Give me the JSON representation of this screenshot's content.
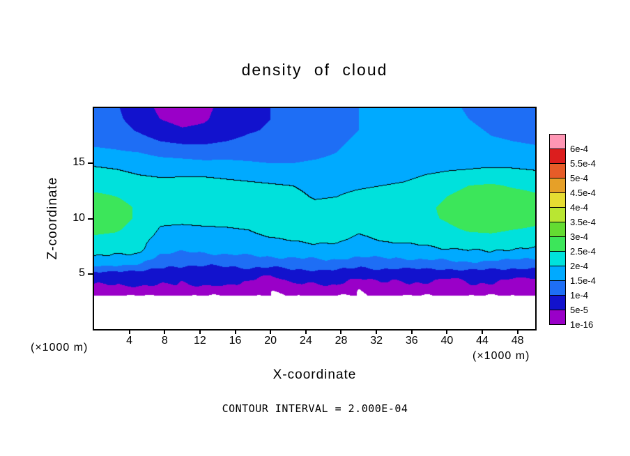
{
  "title": "density of cloud",
  "footnote": "CONTOUR INTERVAL = 2.000E-04",
  "axes": {
    "x_label": "X-coordinate",
    "z_label": "Z-coordinate",
    "x_unit_left": "(×1000 m)",
    "x_unit_right": "(×1000 m)",
    "x_ticks": [
      4,
      8,
      12,
      16,
      20,
      24,
      28,
      32,
      36,
      40,
      44,
      48
    ],
    "z_ticks": [
      5,
      10,
      15
    ]
  },
  "colorbar": {
    "labels_top_to_bottom": [
      "6e-4",
      "5.5e-4",
      "5e-4",
      "4.5e-4",
      "4e-4",
      "3.5e-4",
      "3e-4",
      "2.5e-4",
      "2e-4",
      "1.5e-4",
      "1e-4",
      "5e-5",
      "1e-16"
    ],
    "colors_top_to_bottom": [
      "#ff96b4",
      "#dc1e1e",
      "#e65c28",
      "#e6a028",
      "#e6dc32",
      "#b9e632",
      "#64dc32",
      "#3ce65a",
      "#00e1dc",
      "#00aaff",
      "#1e6ef5",
      "#1212cd",
      "#9a00c8"
    ]
  },
  "chart_data": {
    "type": "heatmap",
    "title": "density of cloud",
    "xlabel": "X-coordinate (×1000 m)",
    "ylabel": "Z-coordinate (×1000 m)",
    "x_range": [
      0,
      50
    ],
    "z_range": [
      0,
      20
    ],
    "value_scale": 0.0001,
    "value_note": "grid values are cloud density in multiples of 1e-4; 0 means below 1e-16 (blank/white)",
    "x": [
      0,
      2.5,
      5,
      7.5,
      10,
      12.5,
      15,
      17.5,
      20,
      22.5,
      25,
      27.5,
      30,
      32.5,
      35,
      37.5,
      40,
      42.5,
      45,
      47.5,
      50
    ],
    "z": [
      0,
      1,
      2,
      3,
      4,
      5,
      6,
      7,
      8,
      9,
      10,
      11,
      12,
      13,
      14,
      15,
      16,
      17,
      18,
      19,
      20
    ],
    "columns": [
      [
        0,
        0,
        0,
        0,
        0.5,
        0.8,
        1.8,
        2.15,
        2.4,
        2.6,
        2.7,
        2.7,
        2.6,
        2.35,
        2.15,
        1.95,
        1.6,
        1.4,
        1.25,
        1.15,
        1.1
      ],
      [
        0,
        0,
        0,
        0,
        0.5,
        0.8,
        1.7,
        2.1,
        2.35,
        2.55,
        2.65,
        2.65,
        2.5,
        2.3,
        2.1,
        1.9,
        1.55,
        1.35,
        1.2,
        1.1,
        1.05
      ],
      [
        0,
        0,
        0,
        0,
        0.55,
        0.85,
        1.6,
        2.05,
        2.2,
        2.35,
        2.45,
        2.45,
        2.35,
        2.2,
        2.0,
        1.8,
        1.5,
        1.2,
        0.95,
        0.8,
        0.75
      ],
      [
        0,
        0,
        0,
        0,
        0.5,
        0.75,
        1.2,
        1.6,
        1.8,
        1.95,
        2.1,
        2.2,
        2.25,
        2.15,
        1.95,
        1.7,
        1.35,
        1.0,
        0.7,
        0.5,
        0.4
      ],
      [
        0,
        0,
        0,
        0,
        0.5,
        0.7,
        1.1,
        1.5,
        1.8,
        1.9,
        2.1,
        2.25,
        2.3,
        2.2,
        1.95,
        1.65,
        1.3,
        0.9,
        0.55,
        0.35,
        0.3
      ],
      [
        0,
        0,
        0,
        0,
        0.5,
        0.7,
        1.1,
        1.55,
        1.85,
        1.92,
        2.15,
        2.3,
        2.3,
        2.2,
        1.95,
        1.6,
        1.25,
        0.9,
        0.6,
        0.45,
        0.4
      ],
      [
        0,
        0,
        0,
        0,
        0.55,
        0.75,
        1.15,
        1.6,
        1.85,
        1.95,
        2.15,
        2.3,
        2.3,
        2.15,
        1.9,
        1.6,
        1.3,
        1.0,
        0.8,
        0.7,
        0.65
      ],
      [
        0,
        0,
        0,
        0,
        0.45,
        0.75,
        1.2,
        1.65,
        1.9,
        2.0,
        2.2,
        2.3,
        2.25,
        2.1,
        1.85,
        1.55,
        1.3,
        1.1,
        0.95,
        0.9,
        0.9
      ],
      [
        0,
        0,
        0,
        0,
        0.0,
        0.6,
        1.25,
        1.7,
        1.95,
        2.1,
        2.25,
        2.3,
        2.2,
        2.05,
        1.8,
        1.5,
        1.3,
        1.15,
        1.05,
        1.0,
        1.0
      ],
      [
        0,
        0,
        0,
        0,
        0.45,
        0.8,
        1.3,
        1.75,
        2.0,
        2.15,
        2.25,
        2.25,
        2.15,
        2.0,
        1.75,
        1.5,
        1.35,
        1.25,
        1.15,
        1.1,
        1.1
      ],
      [
        0,
        0,
        0,
        0,
        0.5,
        0.8,
        1.35,
        1.8,
        2.05,
        2.2,
        2.25,
        2.15,
        1.95,
        1.85,
        1.7,
        1.55,
        1.4,
        1.3,
        1.25,
        1.2,
        1.2
      ],
      [
        0,
        0,
        0,
        0,
        0.5,
        0.8,
        1.35,
        1.8,
        2.05,
        2.2,
        2.3,
        2.2,
        2.0,
        1.9,
        1.75,
        1.6,
        1.5,
        1.45,
        1.4,
        1.4,
        1.4
      ],
      [
        0,
        0,
        0,
        0,
        0.1,
        0.7,
        1.25,
        1.7,
        1.9,
        2.05,
        2.25,
        2.25,
        2.1,
        1.95,
        1.8,
        1.7,
        1.6,
        1.55,
        1.5,
        1.5,
        1.5
      ],
      [
        0,
        0,
        0,
        0,
        0.45,
        0.75,
        1.3,
        1.75,
        2.0,
        2.15,
        2.3,
        2.3,
        2.15,
        2.0,
        1.85,
        1.75,
        1.65,
        1.6,
        1.6,
        1.6,
        1.6
      ],
      [
        0,
        0,
        0,
        0,
        0.4,
        0.7,
        1.3,
        1.8,
        2.05,
        2.2,
        2.35,
        2.35,
        2.2,
        2.05,
        1.9,
        1.8,
        1.75,
        1.7,
        1.7,
        1.7,
        1.7
      ],
      [
        0,
        0,
        0,
        0,
        0.45,
        0.75,
        1.35,
        1.85,
        2.1,
        2.25,
        2.4,
        2.4,
        2.3,
        2.15,
        2.0,
        1.85,
        1.8,
        1.75,
        1.75,
        1.7,
        1.7
      ],
      [
        0,
        0,
        0,
        0,
        0.2,
        0.7,
        1.4,
        1.9,
        2.2,
        2.4,
        2.55,
        2.6,
        2.5,
        2.3,
        2.05,
        1.9,
        1.8,
        1.75,
        1.7,
        1.65,
        1.6
      ],
      [
        0,
        0,
        0,
        0,
        0.45,
        0.75,
        1.45,
        1.95,
        2.3,
        2.55,
        2.75,
        2.8,
        2.7,
        2.5,
        2.1,
        1.9,
        1.8,
        1.7,
        1.6,
        1.5,
        1.45
      ],
      [
        0,
        0,
        0,
        0,
        0.45,
        0.75,
        1.4,
        1.95,
        2.3,
        2.6,
        2.8,
        2.85,
        2.75,
        2.55,
        2.2,
        1.9,
        1.7,
        1.55,
        1.45,
        1.35,
        1.3
      ],
      [
        0,
        0,
        0,
        0,
        0.15,
        0.7,
        1.35,
        1.9,
        2.25,
        2.5,
        2.7,
        2.75,
        2.65,
        2.45,
        2.15,
        1.9,
        1.65,
        1.5,
        1.4,
        1.3,
        1.25
      ],
      [
        0,
        0,
        0,
        0,
        0.35,
        0.65,
        1.3,
        1.85,
        2.2,
        2.45,
        2.6,
        2.65,
        2.55,
        2.4,
        2.1,
        1.85,
        1.6,
        1.45,
        1.35,
        1.3,
        1.25
      ]
    ],
    "band_thresholds": [
      0.5,
      1,
      1.5,
      2,
      2.5,
      3,
      3.5,
      4,
      4.5,
      5,
      5.5,
      6
    ],
    "band_colors_bottom_to_top": [
      "#9a00c8",
      "#1212cd",
      "#1e6ef5",
      "#00aaff",
      "#00e1dc",
      "#3ce65a",
      "#64dc32",
      "#b9e632",
      "#e6dc32",
      "#e6a028",
      "#e65c28",
      "#dc1e1e",
      "#ff96b4"
    ],
    "zero_color": "#ffffff",
    "contour_levels": [
      2,
      4
    ],
    "contour_interval": "2.000E-04",
    "legend_position": "right"
  }
}
